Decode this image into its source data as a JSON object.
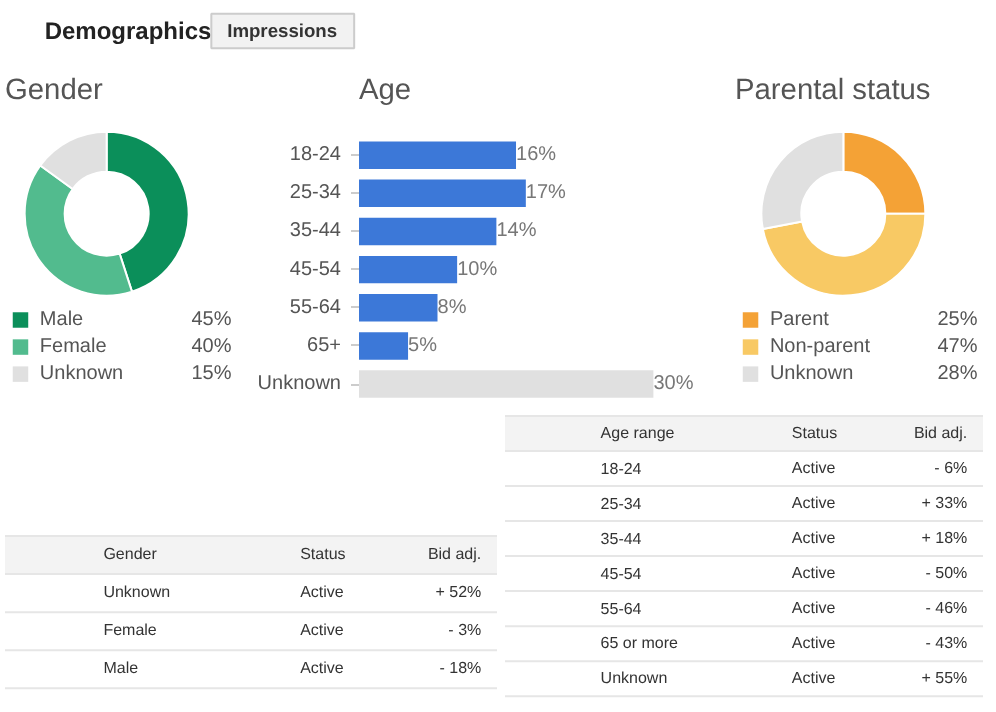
{
  "chart_data": [
    {
      "type": "other",
      "title": "Demographics",
      "annotations": [
        "Impressions"
      ]
    },
    {
      "type": "donut",
      "title": "Gender",
      "categories": [
        "Male",
        "Female",
        "Unknown"
      ],
      "values": [
        45,
        40,
        15
      ],
      "colors": [
        "#0b8f5a",
        "#52bb8e",
        "#e0e0e0"
      ],
      "value_labels": [
        "45%",
        "40%",
        "15%"
      ],
      "legend": "bottom"
    },
    {
      "type": "bar",
      "title": "Age",
      "orientation": "horizontal",
      "categories": [
        "18-24",
        "25-34",
        "35-44",
        "45-54",
        "55-64",
        "65+",
        "Unknown"
      ],
      "values": [
        16,
        17,
        14,
        10,
        8,
        5,
        30
      ],
      "colors": [
        "#3c78d8",
        "#3c78d8",
        "#3c78d8",
        "#3c78d8",
        "#3c78d8",
        "#3c78d8",
        "#e0e0e0"
      ],
      "value_labels": [
        "16%",
        "17%",
        "14%",
        "10%",
        "8%",
        "5%",
        "30%"
      ]
    },
    {
      "type": "donut",
      "title": "Parental status",
      "categories": [
        "Parent",
        "Non-parent",
        "Unknown"
      ],
      "values": [
        25,
        47,
        28
      ],
      "colors": [
        "#f4a236",
        "#f8c964",
        "#e0e0e0"
      ],
      "value_labels": [
        "25%",
        "47%",
        "28%"
      ],
      "legend": "bottom"
    },
    {
      "type": "other",
      "annotations": [
        "Gender",
        "Status",
        "Bid adj.",
        "Unknown",
        "Active",
        "+ 52%",
        "Female",
        "Active",
        "- 3%",
        "Male",
        "Active",
        "- 18%"
      ]
    },
    {
      "type": "other",
      "annotations": [
        "Age range",
        "Status",
        "Bid adj.",
        "18-24",
        "Active",
        "- 6%",
        "25-34",
        "Active",
        "+ 33%",
        "35-44",
        "Active",
        "+ 18%",
        "45-54",
        "Active",
        "- 50%",
        "55-64",
        "Active",
        "- 46%",
        "65 or more",
        "Active",
        "- 43%",
        "Unknown",
        "Active",
        "+ 55%"
      ]
    }
  ]
}
